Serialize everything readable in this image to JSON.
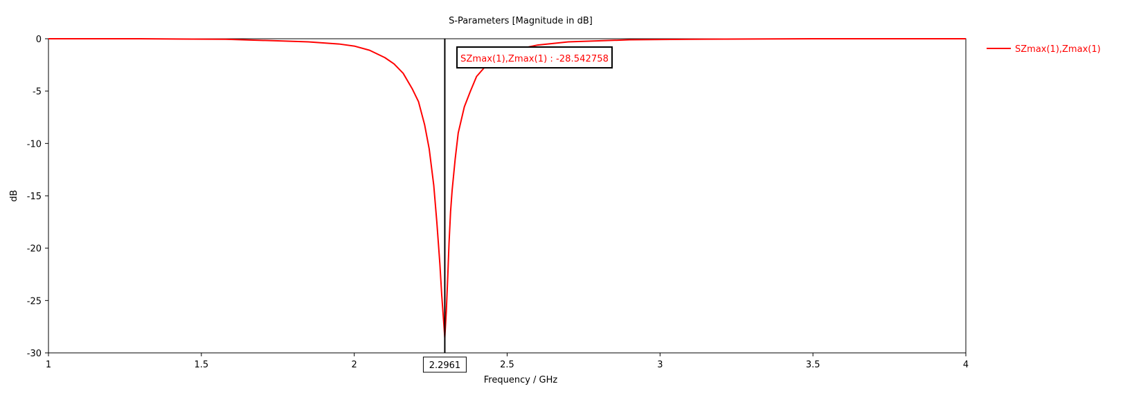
{
  "chart_data": {
    "type": "line",
    "title": "S-Parameters [Magnitude in dB]",
    "xlabel": "Frequency / GHz",
    "ylabel": "dB",
    "xlim": [
      1,
      4
    ],
    "ylim": [
      -30,
      0
    ],
    "xticks": [
      1,
      1.5,
      2,
      2.5,
      3,
      3.5,
      4
    ],
    "xtick_labels": [
      "1",
      "1.5",
      "2",
      "2.5",
      "3",
      "3.5",
      "4"
    ],
    "yticks": [
      0,
      -5,
      -10,
      -15,
      -20,
      -25,
      -30
    ],
    "ytick_labels": [
      "0",
      "-5",
      "-10",
      "-15",
      "-20",
      "-25",
      "-30"
    ],
    "grid": true,
    "legend_position": "right",
    "series": [
      {
        "name": "SZmax(1),Zmax(1)",
        "color": "#ff0000",
        "x": [
          1.0,
          1.3,
          1.58,
          1.75,
          1.85,
          1.95,
          2.0,
          2.05,
          2.1,
          2.13,
          2.16,
          2.19,
          2.21,
          2.23,
          2.245,
          2.26,
          2.27,
          2.28,
          2.2861,
          2.2911,
          2.2961,
          2.3011,
          2.3061,
          2.31,
          2.315,
          2.32,
          2.33,
          2.34,
          2.36,
          2.38,
          2.4,
          2.43,
          2.46,
          2.5,
          2.55,
          2.6,
          2.7,
          2.9,
          3.1,
          3.5,
          4.0
        ],
        "y": [
          0,
          0,
          -0.05,
          -0.2,
          -0.3,
          -0.5,
          -0.7,
          -1.1,
          -1.8,
          -2.4,
          -3.3,
          -4.8,
          -6.0,
          -8.2,
          -10.5,
          -14.0,
          -17.5,
          -21.5,
          -24.5,
          -26.5,
          -28.542758,
          -26.0,
          -22.5,
          -19.5,
          -16.5,
          -14.5,
          -11.5,
          -9.0,
          -6.5,
          -5.0,
          -3.6,
          -2.6,
          -1.8,
          -1.2,
          -0.9,
          -0.6,
          -0.3,
          -0.1,
          -0.05,
          0,
          0
        ]
      }
    ],
    "marker": {
      "x": 2.2961,
      "x_label": "2.2961",
      "annotation": "SZmax(1),Zmax(1) : -28.542758",
      "value": -28.542758,
      "color": "#000000"
    }
  }
}
